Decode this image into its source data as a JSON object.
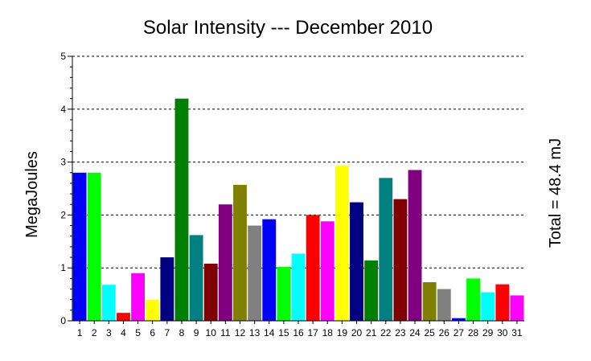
{
  "chart_data": {
    "type": "bar",
    "title": "Solar Intensity --- December 2010",
    "ylabel": "MegaJoules",
    "xlabel": "",
    "right_label": "Total = 48.4 mJ",
    "ylim": [
      0,
      5
    ],
    "yticks": [
      0,
      1,
      2,
      3,
      4,
      5
    ],
    "grid": true,
    "categories": [
      "1",
      "2",
      "3",
      "4",
      "5",
      "6",
      "7",
      "8",
      "9",
      "10",
      "11",
      "12",
      "13",
      "14",
      "15",
      "16",
      "17",
      "18",
      "19",
      "20",
      "21",
      "22",
      "23",
      "24",
      "25",
      "26",
      "27",
      "28",
      "29",
      "30",
      "31"
    ],
    "values": [
      2.8,
      2.8,
      0.68,
      0.15,
      0.9,
      0.4,
      1.2,
      4.2,
      1.62,
      1.08,
      2.2,
      2.57,
      1.8,
      1.92,
      1.02,
      1.27,
      2.0,
      1.88,
      2.93,
      2.24,
      1.14,
      2.7,
      2.3,
      2.85,
      0.73,
      0.6,
      0.05,
      0.8,
      0.54,
      0.69,
      0.48
    ],
    "colors": [
      "#0000ff",
      "#00ff00",
      "#00ffff",
      "#ff0000",
      "#ff00ff",
      "#ffff00",
      "#000080",
      "#008000",
      "#008080",
      "#800000",
      "#800080",
      "#808000",
      "#808080",
      "#0000ff",
      "#00ff00",
      "#00ffff",
      "#ff0000",
      "#ff00ff",
      "#ffff00",
      "#000080",
      "#008000",
      "#008080",
      "#800000",
      "#800080",
      "#808000",
      "#808080",
      "#0000ff",
      "#00ff00",
      "#00ffff",
      "#ff0000",
      "#ff00ff"
    ]
  }
}
